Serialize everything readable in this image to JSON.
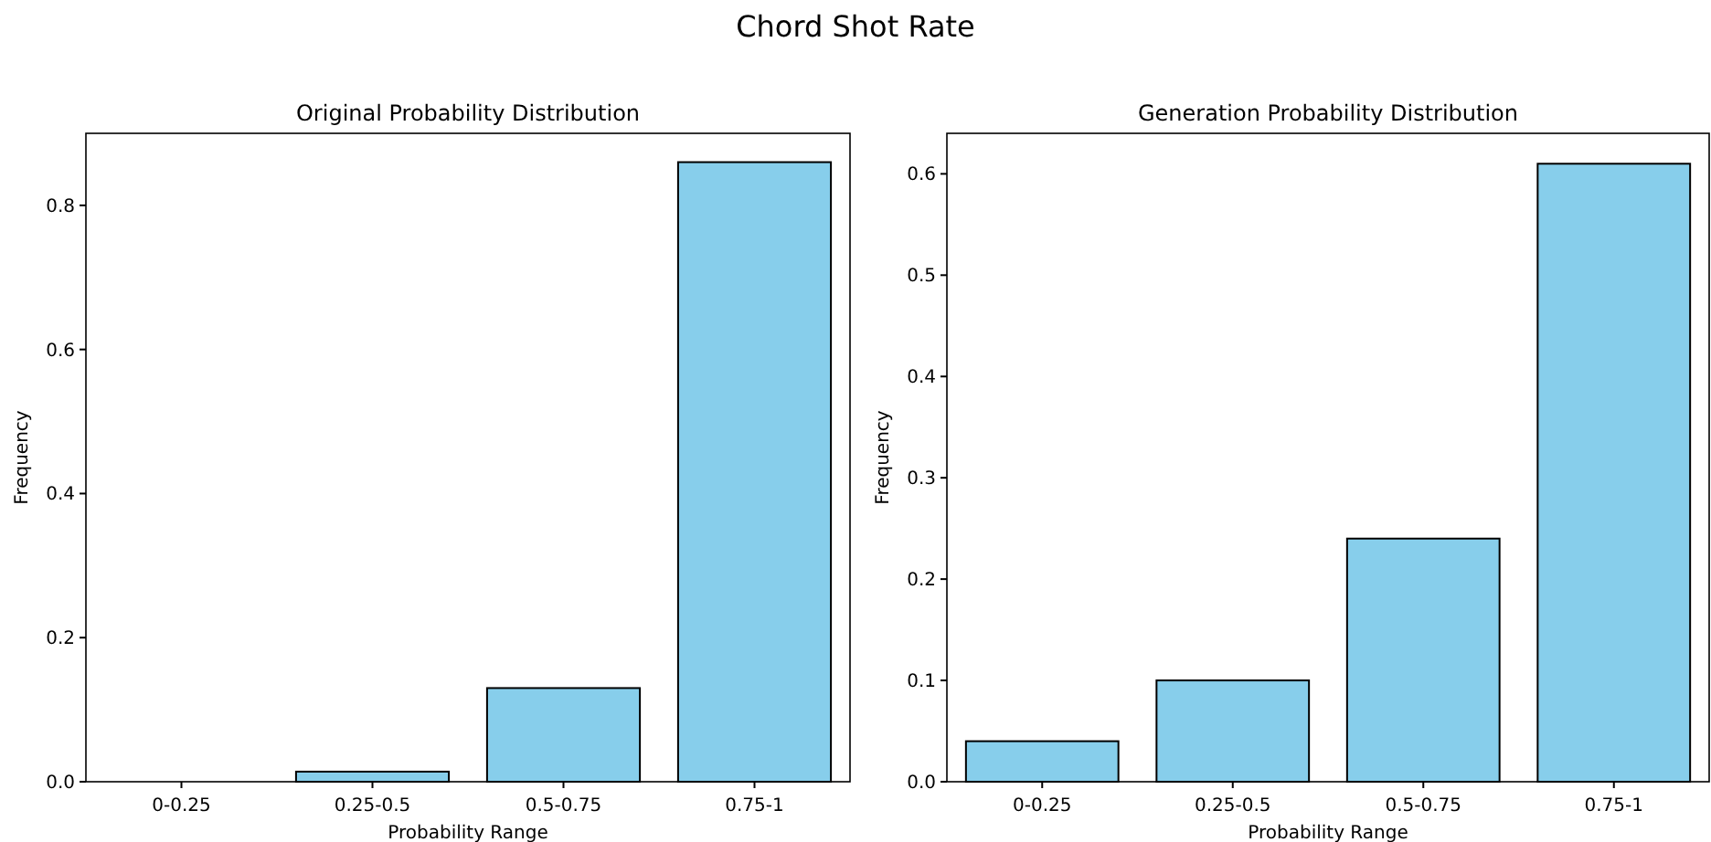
{
  "chart_data": [
    {
      "type": "bar",
      "title": "Original Probability Distribution",
      "xlabel": "Probability Range",
      "ylabel": "Frequency",
      "annotations": [
        "Chord Shot Rate"
      ],
      "categories": [
        "0-0.25",
        "0.25-0.5",
        "0.5-0.75",
        "0.75-1"
      ],
      "values": [
        0,
        0.014,
        0.13,
        0.86
      ],
      "color": "#87ceeb",
      "ylim": [
        0,
        0.9
      ],
      "yticks": [
        {
          "value": 0,
          "label": "0.0"
        },
        0.2,
        0.4,
        0.6,
        0.8
      ],
      "grid": false
    },
    {
      "type": "bar",
      "title": "Generation Probability Distribution",
      "xlabel": "Probability Range",
      "ylabel": "Frequency",
      "categories": [
        "0-0.25",
        "0.25-0.5",
        "0.5-0.75",
        "0.75-1"
      ],
      "values": [
        0.04,
        0.1,
        0.24,
        0.61
      ],
      "color": "#87ceeb",
      "ylim": [
        0,
        0.64
      ],
      "yticks": [
        {
          "value": 0,
          "label": "0.0"
        },
        0.1,
        0.2,
        0.3,
        0.4,
        0.5,
        0.6
      ],
      "grid": false
    }
  ]
}
